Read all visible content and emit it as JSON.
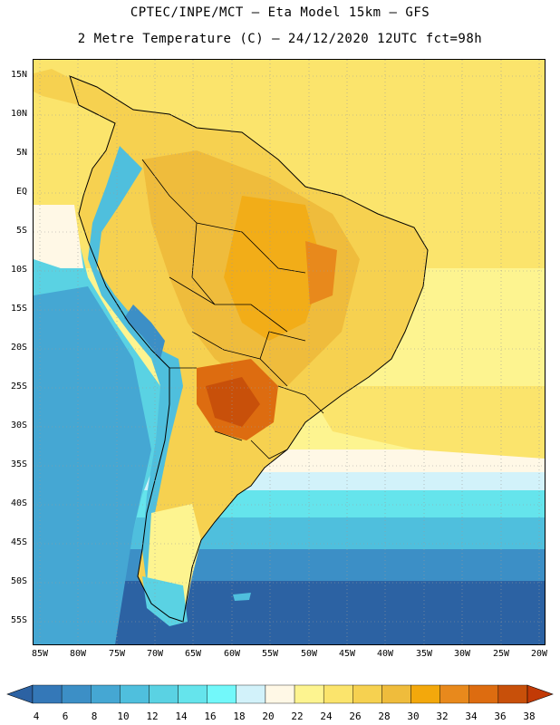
{
  "title": {
    "line1": "CPTEC/INPE/MCT –  Eta Model 15km – GFS",
    "line2": "2 Metre Temperature (C) – 24/12/2020 12UTC fct=98h"
  },
  "axes": {
    "lat_labels": [
      "15N",
      "10N",
      "5N",
      "EQ",
      "5S",
      "10S",
      "15S",
      "20S",
      "25S",
      "30S",
      "35S",
      "40S",
      "45S",
      "50S",
      "55S"
    ],
    "lon_labels": [
      "85W",
      "80W",
      "75W",
      "70W",
      "65W",
      "60W",
      "55W",
      "50W",
      "45W",
      "40W",
      "35W",
      "30W",
      "25W",
      "20W"
    ]
  },
  "colorbar": {
    "labels": [
      "4",
      "6",
      "8",
      "10",
      "12",
      "14",
      "16",
      "18",
      "20",
      "22",
      "24",
      "26",
      "28",
      "30",
      "32",
      "34",
      "36",
      "38"
    ],
    "colors": [
      "#2c62a3",
      "#3478b8",
      "#3c8fc6",
      "#45a7d3",
      "#4fbfdd",
      "#5ad2e3",
      "#65e4ec",
      "#72f8fa",
      "#d2f2fa",
      "#fff8e6",
      "#fdf490",
      "#fbe46c",
      "#f6d150",
      "#efbc3c",
      "#f3a80c",
      "#e8891c",
      "#dd6c10",
      "#c8500a",
      "#c23a06"
    ],
    "range": [
      4,
      38
    ]
  },
  "map": {
    "lon_range": [
      -86,
      -19
    ],
    "lat_range": [
      -58,
      16
    ],
    "variable": "2 Metre Temperature",
    "units": "C"
  }
}
